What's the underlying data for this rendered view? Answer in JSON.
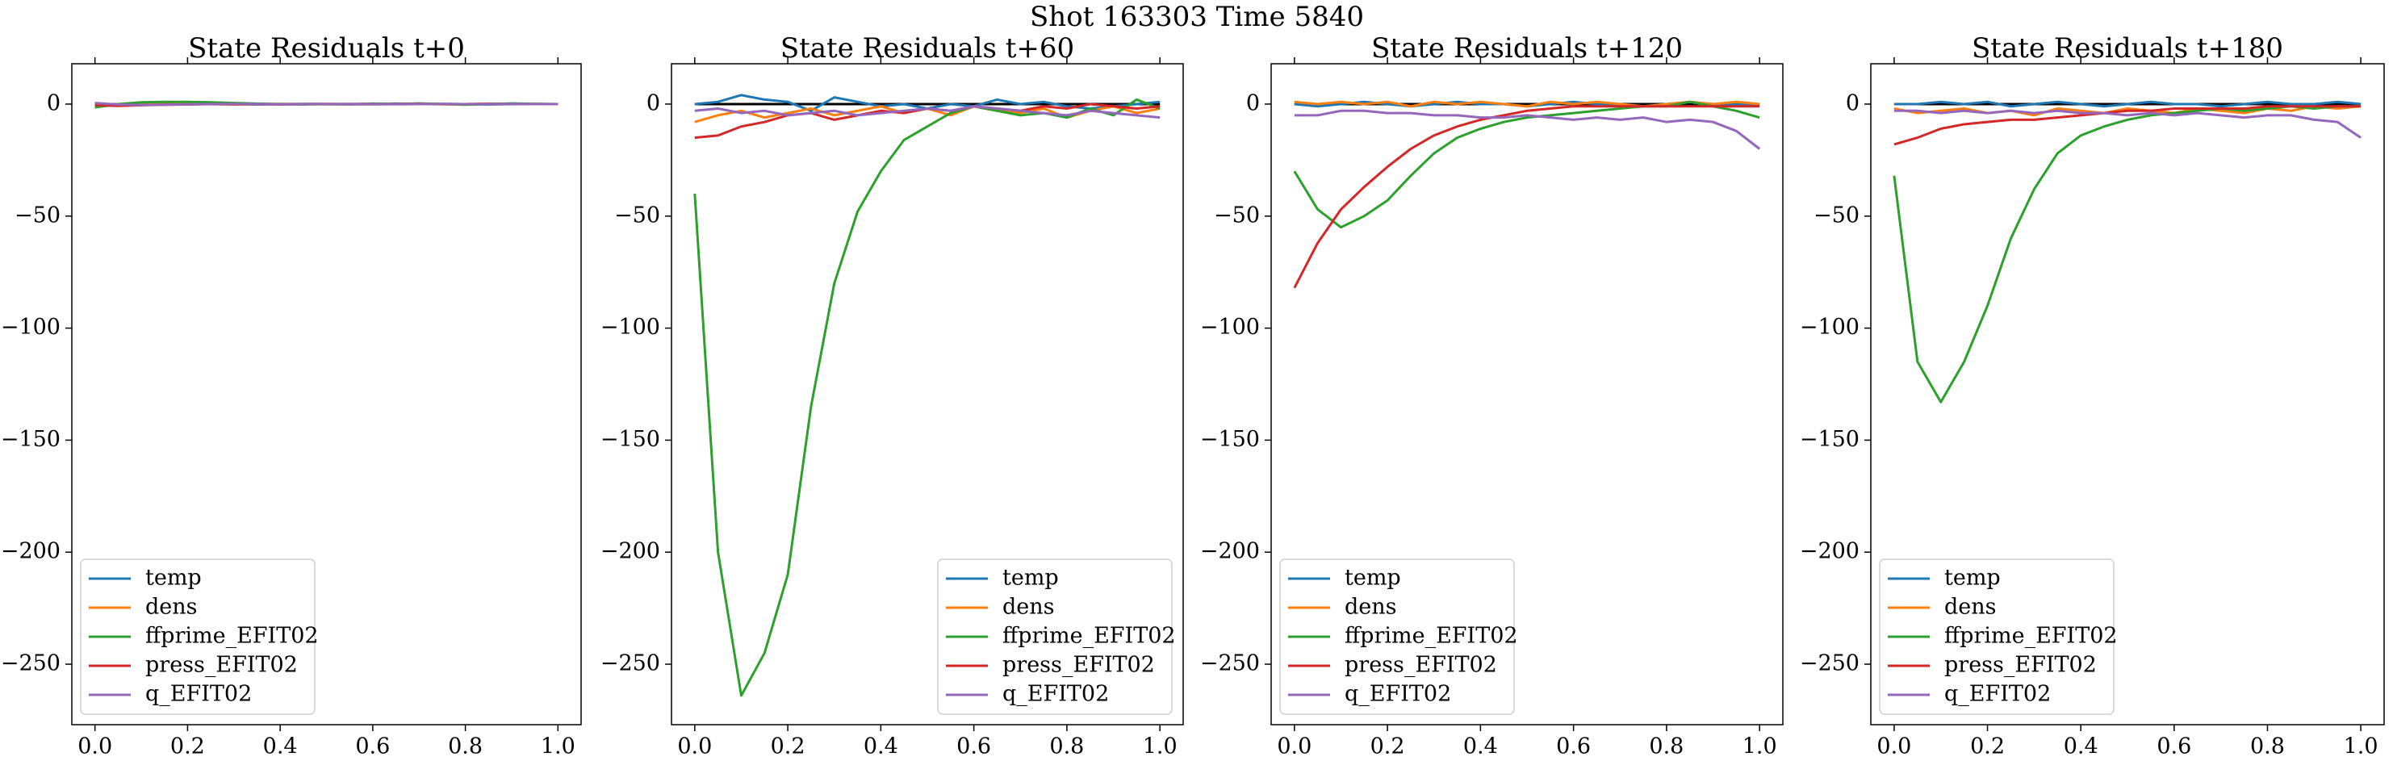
{
  "title": "Shot 163303   Time 5840",
  "chart_data": [
    {
      "type": "line",
      "title": "State Residuals t+0",
      "legend": "lower left",
      "hline": 0,
      "x": [
        0,
        0.05,
        0.1,
        0.15,
        0.2,
        0.25,
        0.3,
        0.35,
        0.4,
        0.45,
        0.5,
        0.55,
        0.6,
        0.65,
        0.7,
        0.75,
        0.8,
        0.85,
        0.9,
        0.95,
        1
      ],
      "xlim": [
        -0.05,
        1.05
      ],
      "ylim": [
        -277,
        18
      ],
      "xticks": [
        {
          "value": 0,
          "label": "0.0"
        },
        0.2,
        0.4,
        0.6,
        0.8,
        {
          "value": 1,
          "label": "1.0"
        }
      ],
      "yticks": [
        {
          "value": -250,
          "label": "−250"
        },
        {
          "value": -200,
          "label": "−200"
        },
        {
          "value": -150,
          "label": "−150"
        },
        {
          "value": -100,
          "label": "−100"
        },
        {
          "value": -50,
          "label": "−50"
        },
        0
      ],
      "series": [
        {
          "name": "temp",
          "color": "#1f77b4",
          "values": [
            -1,
            -0.5,
            0,
            0.3,
            0.5,
            0.2,
            0,
            -0.2,
            0,
            0.1,
            0,
            -0.1,
            0,
            0.2,
            0,
            0.1,
            0,
            -0.2,
            0,
            0.1,
            0
          ]
        },
        {
          "name": "dens",
          "color": "#ff7f0e",
          "values": [
            -0.5,
            0,
            0.2,
            0.4,
            0.2,
            0,
            -0.2,
            0,
            0.1,
            0,
            -0.1,
            0,
            0.2,
            0,
            0.1,
            -0.1,
            0,
            0.2,
            0,
            0.1,
            0
          ]
        },
        {
          "name": "ffprime_EFIT02",
          "color": "#2ca02c",
          "values": [
            -1.5,
            0,
            0.8,
            1,
            1,
            0.8,
            0.5,
            0.2,
            0,
            -0.2,
            0,
            -0.1,
            0.2,
            0,
            0.3,
            0,
            -0.3,
            0,
            0.3,
            0.1,
            0
          ]
        },
        {
          "name": "press_EFIT02",
          "color": "#d62728",
          "values": [
            -0.5,
            -0.8,
            -0.5,
            -0.3,
            -0.2,
            0,
            -0.1,
            0,
            -0.2,
            0,
            0.1,
            0,
            -0.1,
            0,
            0.1,
            0,
            0,
            0.1,
            0,
            0,
            0
          ]
        },
        {
          "name": "q_EFIT02",
          "color": "#9467bd",
          "values": [
            0.5,
            -0.2,
            -0.4,
            -0.3,
            -0.1,
            0,
            0.1,
            0,
            -0.1,
            0,
            0,
            0.1,
            0,
            -0.1,
            0,
            0.1,
            0,
            0,
            0.1,
            0,
            0
          ]
        }
      ]
    },
    {
      "type": "line",
      "title": "State Residuals t+60",
      "legend": "lower right",
      "hline": 0,
      "x": [
        0,
        0.05,
        0.1,
        0.15,
        0.2,
        0.25,
        0.3,
        0.35,
        0.4,
        0.45,
        0.5,
        0.55,
        0.6,
        0.65,
        0.7,
        0.75,
        0.8,
        0.85,
        0.9,
        0.95,
        1
      ],
      "xlim": [
        -0.05,
        1.05
      ],
      "ylim": [
        -277,
        18
      ],
      "xticks": [
        {
          "value": 0,
          "label": "0.0"
        },
        0.2,
        0.4,
        0.6,
        0.8,
        {
          "value": 1,
          "label": "1.0"
        }
      ],
      "yticks": [
        {
          "value": -250,
          "label": "−250"
        },
        {
          "value": -200,
          "label": "−200"
        },
        {
          "value": -150,
          "label": "−150"
        },
        {
          "value": -100,
          "label": "−100"
        },
        {
          "value": -50,
          "label": "−50"
        },
        0
      ],
      "series": [
        {
          "name": "temp",
          "color": "#1f77b4",
          "values": [
            0,
            1,
            4,
            2,
            1,
            -3,
            3,
            1,
            -1,
            0,
            -2,
            0,
            -1,
            2,
            0,
            1,
            -1,
            -2,
            -1,
            0,
            1
          ]
        },
        {
          "name": "dens",
          "color": "#ff7f0e",
          "values": [
            -8,
            -5,
            -3,
            -6,
            -4,
            -2,
            -5,
            -3,
            -1,
            -4,
            -2,
            -5,
            -1,
            -3,
            -4,
            -2,
            -6,
            -3,
            -1,
            -4,
            -2
          ]
        },
        {
          "name": "ffprime_EFIT02",
          "color": "#2ca02c",
          "values": [
            -40,
            -200,
            -264,
            -245,
            -210,
            -135,
            -80,
            -48,
            -30,
            -16,
            -10,
            -4,
            -1,
            -3,
            -5,
            -4,
            -6,
            -2,
            -5,
            2,
            -2
          ]
        },
        {
          "name": "press_EFIT02",
          "color": "#d62728",
          "values": [
            -15,
            -14,
            -10,
            -8,
            -5,
            -4,
            -7,
            -5,
            -3,
            -4,
            -2,
            -3,
            -1,
            -2,
            -3,
            -1,
            -2,
            0,
            -1,
            -2,
            -1
          ]
        },
        {
          "name": "q_EFIT02",
          "color": "#9467bd",
          "values": [
            -3,
            -2,
            -4,
            -3,
            -5,
            -4,
            -3,
            -5,
            -4,
            -3,
            -2,
            -3,
            -1,
            -2,
            -3,
            -4,
            -5,
            -3,
            -4,
            -5,
            -6
          ]
        }
      ]
    },
    {
      "type": "line",
      "title": "State Residuals t+120",
      "legend": "lower left",
      "hline": 0,
      "x": [
        0,
        0.05,
        0.1,
        0.15,
        0.2,
        0.25,
        0.3,
        0.35,
        0.4,
        0.45,
        0.5,
        0.55,
        0.6,
        0.65,
        0.7,
        0.75,
        0.8,
        0.85,
        0.9,
        0.95,
        1
      ],
      "xlim": [
        -0.05,
        1.05
      ],
      "ylim": [
        -277,
        18
      ],
      "xticks": [
        {
          "value": 0,
          "label": "0.0"
        },
        0.2,
        0.4,
        0.6,
        0.8,
        {
          "value": 1,
          "label": "1.0"
        }
      ],
      "yticks": [
        {
          "value": -250,
          "label": "−250"
        },
        {
          "value": -200,
          "label": "−200"
        },
        {
          "value": -150,
          "label": "−150"
        },
        {
          "value": -100,
          "label": "−100"
        },
        {
          "value": -50,
          "label": "−50"
        },
        0
      ],
      "series": [
        {
          "name": "temp",
          "color": "#1f77b4",
          "values": [
            0,
            -1,
            0,
            1,
            0,
            -1,
            0,
            1,
            0,
            0,
            -1,
            0,
            1,
            0,
            0,
            -1,
            0,
            1,
            0,
            0,
            0
          ]
        },
        {
          "name": "dens",
          "color": "#ff7f0e",
          "values": [
            1,
            0,
            1,
            0,
            1,
            -1,
            1,
            0,
            1,
            0,
            -1,
            1,
            0,
            1,
            0,
            -1,
            0,
            1,
            0,
            1,
            0
          ]
        },
        {
          "name": "ffprime_EFIT02",
          "color": "#2ca02c",
          "values": [
            -30,
            -47,
            -55,
            -50,
            -43,
            -32,
            -22,
            -15,
            -11,
            -8,
            -6,
            -5,
            -4,
            -3,
            -2,
            -1,
            -1,
            1,
            -1,
            -3,
            -6
          ]
        },
        {
          "name": "press_EFIT02",
          "color": "#d62728",
          "values": [
            -82,
            -62,
            -47,
            -37,
            -28,
            -20,
            -14,
            -10,
            -7,
            -5,
            -3,
            -2,
            -1,
            -1,
            -1,
            -1,
            -1,
            -1,
            -1,
            -1,
            -1
          ]
        },
        {
          "name": "q_EFIT02",
          "color": "#9467bd",
          "values": [
            -5,
            -5,
            -3,
            -3,
            -4,
            -4,
            -5,
            -5,
            -6,
            -6,
            -5,
            -6,
            -7,
            -6,
            -7,
            -6,
            -8,
            -7,
            -8,
            -12,
            -20
          ]
        }
      ]
    },
    {
      "type": "line",
      "title": "State Residuals t+180",
      "legend": "lower left",
      "hline": 0,
      "x": [
        0,
        0.05,
        0.1,
        0.15,
        0.2,
        0.25,
        0.3,
        0.35,
        0.4,
        0.45,
        0.5,
        0.55,
        0.6,
        0.65,
        0.7,
        0.75,
        0.8,
        0.85,
        0.9,
        0.95,
        1
      ],
      "xlim": [
        -0.05,
        1.05
      ],
      "ylim": [
        -277,
        18
      ],
      "xticks": [
        {
          "value": 0,
          "label": "0.0"
        },
        0.2,
        0.4,
        0.6,
        0.8,
        {
          "value": 1,
          "label": "1.0"
        }
      ],
      "yticks": [
        {
          "value": -250,
          "label": "−250"
        },
        {
          "value": -200,
          "label": "−200"
        },
        {
          "value": -150,
          "label": "−150"
        },
        {
          "value": -100,
          "label": "−100"
        },
        {
          "value": -50,
          "label": "−50"
        },
        0
      ],
      "series": [
        {
          "name": "temp",
          "color": "#1f77b4",
          "values": [
            0,
            0,
            1,
            0,
            1,
            -1,
            0,
            1,
            0,
            -1,
            0,
            1,
            0,
            0,
            -1,
            0,
            1,
            0,
            0,
            1,
            0
          ]
        },
        {
          "name": "dens",
          "color": "#ff7f0e",
          "values": [
            -2,
            -4,
            -3,
            -2,
            -4,
            -3,
            -5,
            -2,
            -3,
            -4,
            -2,
            -3,
            -4,
            -2,
            -3,
            -4,
            -2,
            -3,
            -1,
            -2,
            -1
          ]
        },
        {
          "name": "ffprime_EFIT02",
          "color": "#2ca02c",
          "values": [
            -32,
            -115,
            -133,
            -115,
            -90,
            -60,
            -38,
            -22,
            -14,
            -10,
            -7,
            -5,
            -4,
            -3,
            -2,
            -3,
            -2,
            -1,
            -2,
            -1,
            -1
          ]
        },
        {
          "name": "press_EFIT02",
          "color": "#d62728",
          "values": [
            -18,
            -15,
            -11,
            -9,
            -8,
            -7,
            -7,
            -6,
            -5,
            -4,
            -3,
            -3,
            -2,
            -2,
            -2,
            -2,
            -1,
            -1,
            -1,
            -1,
            -1
          ]
        },
        {
          "name": "q_EFIT02",
          "color": "#9467bd",
          "values": [
            -3,
            -3,
            -4,
            -3,
            -4,
            -3,
            -4,
            -3,
            -4,
            -4,
            -5,
            -4,
            -5,
            -4,
            -5,
            -6,
            -5,
            -5,
            -7,
            -8,
            -15
          ]
        }
      ]
    }
  ]
}
